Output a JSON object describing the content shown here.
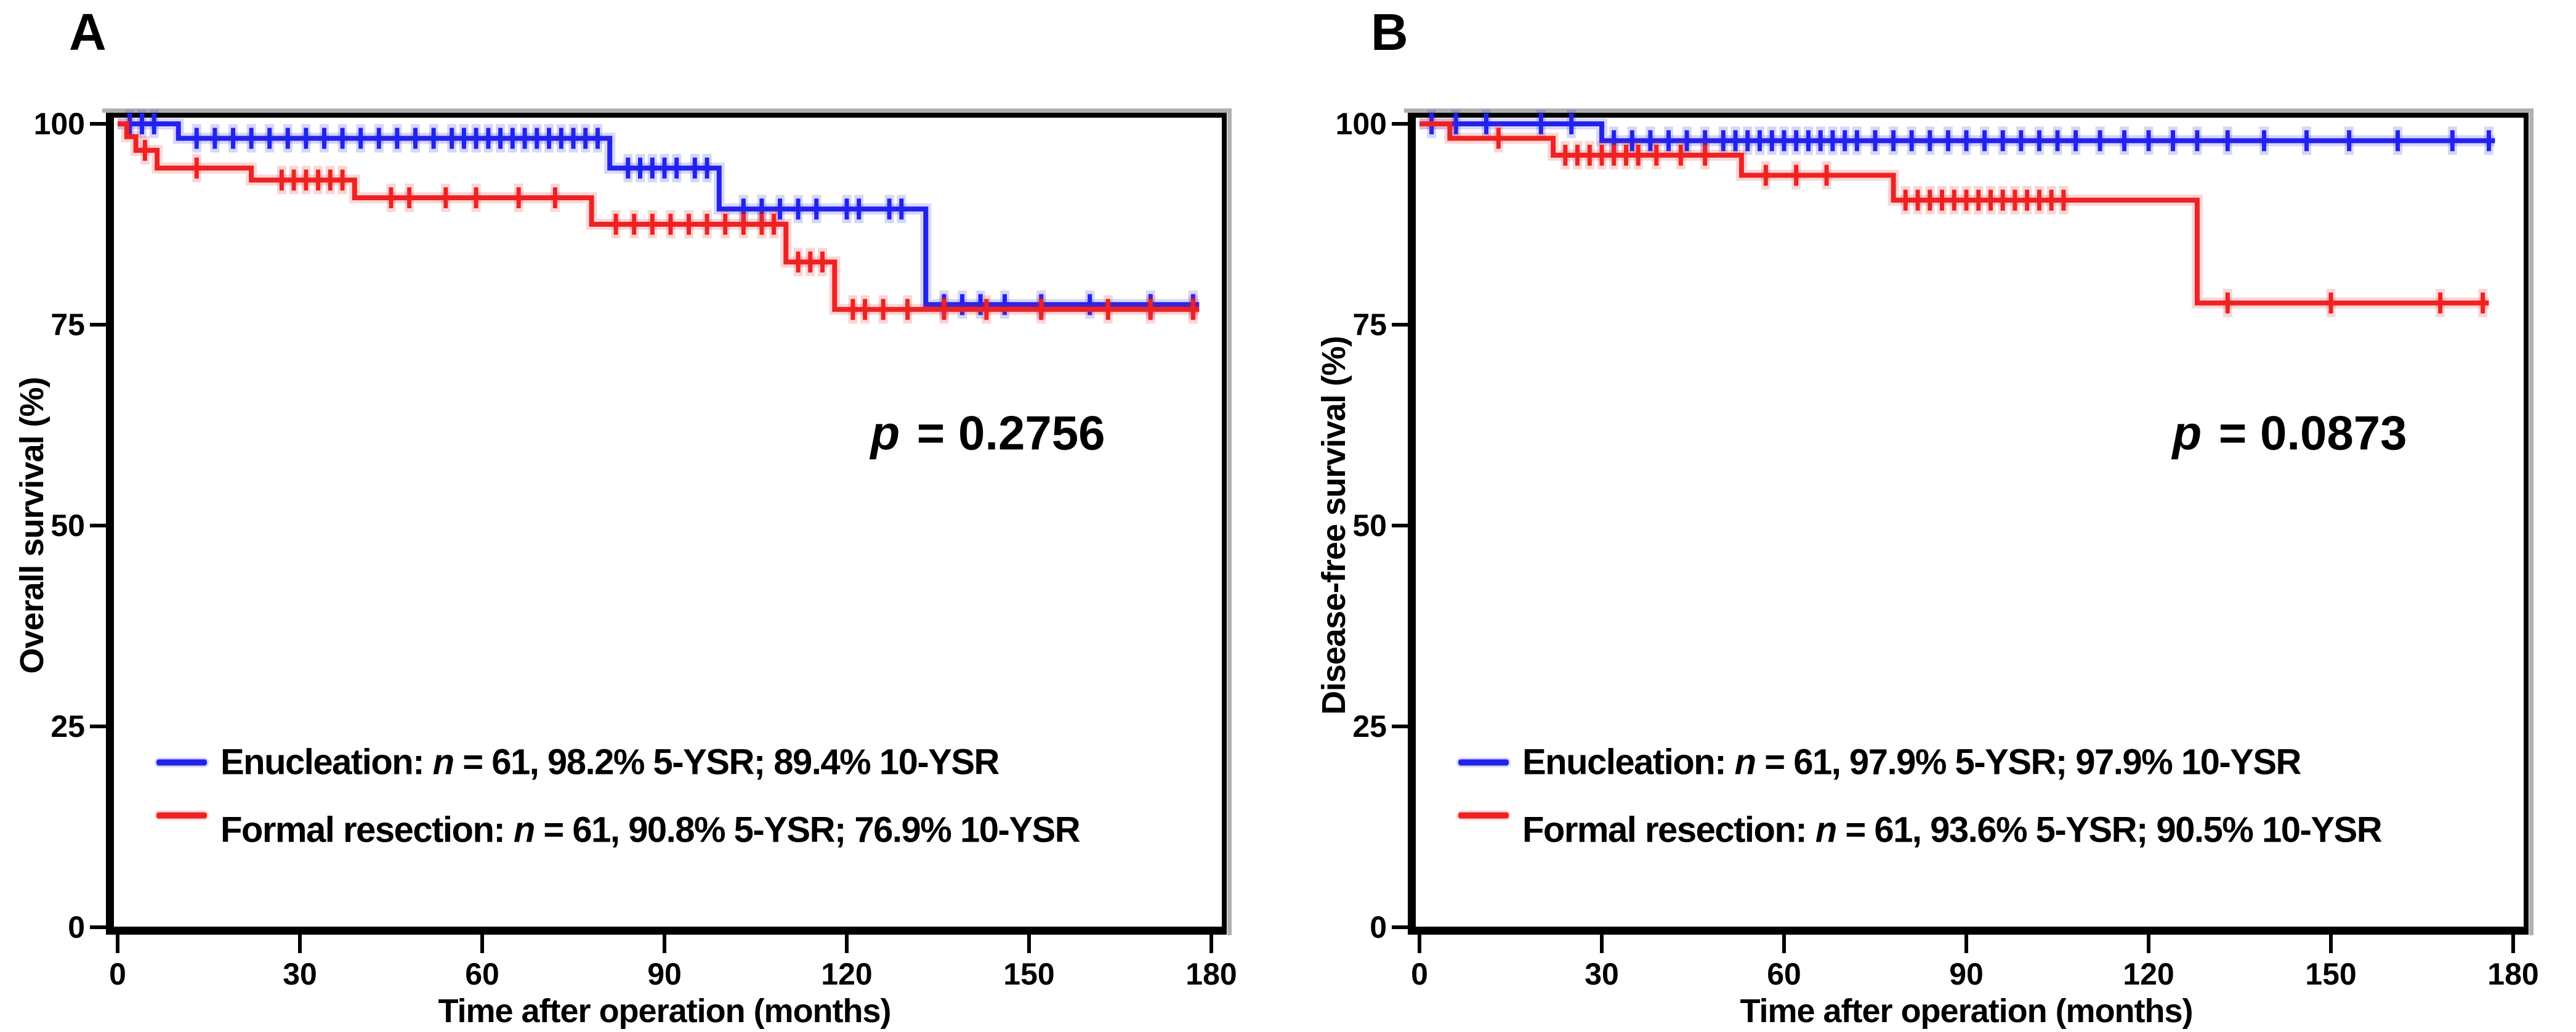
{
  "figure": {
    "description": "Two-panel Kaplan-Meier survival figure comparing enucleation vs formal resection",
    "frame_shadow_color": "#b0b0b0",
    "axis_color": "#000000"
  },
  "chart_data": [
    {
      "type": "line",
      "subtype": "kaplan-meier-step",
      "panel_label": "A",
      "title": "",
      "xlabel": "Time after operation (months)",
      "ylabel": "Overall survival (%)",
      "xlim": [
        0,
        180
      ],
      "ylim": [
        0,
        100
      ],
      "x_ticks": [
        0,
        30,
        60,
        90,
        120,
        150,
        180
      ],
      "y_ticks": [
        0,
        25,
        50,
        75,
        100
      ],
      "grid": "off",
      "legend_position": "lower-left-inside",
      "p_value": {
        "symbol": "p",
        "text": " = 0.2756"
      },
      "series": [
        {
          "name": "Enucleation",
          "color": "#2222ee",
          "legend": {
            "prefix": "Enucleation: ",
            "italic": "n",
            "suffix": " = 61, 98.2% 5-YSR; 89.4% 10-YSR"
          },
          "n": 61,
          "ysr5": 98.2,
          "ysr10": 89.4,
          "start": [
            0,
            100
          ],
          "steps": [
            [
              10,
              98.2
            ],
            [
              81,
              94.5
            ],
            [
              99,
              89.4
            ],
            [
              133,
              77.5
            ]
          ],
          "end_x": 178,
          "censors": [
            [
              2,
              100
            ],
            [
              4,
              100
            ],
            [
              6,
              100
            ],
            [
              13,
              98.2
            ],
            [
              16,
              98.2
            ],
            [
              19,
              98.2
            ],
            [
              22,
              98.2
            ],
            [
              25,
              98.2
            ],
            [
              28,
              98.2
            ],
            [
              31,
              98.2
            ],
            [
              34,
              98.2
            ],
            [
              37,
              98.2
            ],
            [
              40,
              98.2
            ],
            [
              43,
              98.2
            ],
            [
              46,
              98.2
            ],
            [
              49,
              98.2
            ],
            [
              52,
              98.2
            ],
            [
              55,
              98.2
            ],
            [
              57,
              98.2
            ],
            [
              59,
              98.2
            ],
            [
              61,
              98.2
            ],
            [
              63,
              98.2
            ],
            [
              65,
              98.2
            ],
            [
              67,
              98.2
            ],
            [
              69,
              98.2
            ],
            [
              71,
              98.2
            ],
            [
              73,
              98.2
            ],
            [
              75,
              98.2
            ],
            [
              77,
              98.2
            ],
            [
              79,
              98.2
            ],
            [
              84,
              94.5
            ],
            [
              86,
              94.5
            ],
            [
              88,
              94.5
            ],
            [
              90,
              94.5
            ],
            [
              92,
              94.5
            ],
            [
              95,
              94.5
            ],
            [
              97,
              94.5
            ],
            [
              103,
              89.4
            ],
            [
              106,
              89.4
            ],
            [
              109,
              89.4
            ],
            [
              112,
              89.4
            ],
            [
              115,
              89.4
            ],
            [
              120,
              89.4
            ],
            [
              122,
              89.4
            ],
            [
              127,
              89.4
            ],
            [
              129,
              89.4
            ],
            [
              136,
              77.5
            ],
            [
              139,
              77.5
            ],
            [
              142,
              77.5
            ],
            [
              146,
              77.5
            ],
            [
              152,
              77.5
            ],
            [
              160,
              77.5
            ],
            [
              170,
              77.5
            ],
            [
              177,
              77.5
            ]
          ]
        },
        {
          "name": "Formal resection",
          "color": "#ee2222",
          "legend": {
            "prefix": "Formal resection: ",
            "italic": "n",
            "suffix": " = 61, 90.8% 5-YSR; 76.9% 10-YSR"
          },
          "n": 61,
          "ysr5": 90.8,
          "ysr10": 76.9,
          "start": [
            0,
            100
          ],
          "steps": [
            [
              1.5,
              98.4
            ],
            [
              3,
              96.7
            ],
            [
              6.5,
              94.5
            ],
            [
              22,
              93.0
            ],
            [
              39,
              90.8
            ],
            [
              78,
              87.5
            ],
            [
              110,
              82.8
            ],
            [
              118,
              76.9
            ]
          ],
          "end_x": 178,
          "censors": [
            [
              4.5,
              96.7
            ],
            [
              13,
              94.5
            ],
            [
              27,
              93.0
            ],
            [
              29,
              93.0
            ],
            [
              31,
              93.0
            ],
            [
              33,
              93.0
            ],
            [
              35,
              93.0
            ],
            [
              37,
              93.0
            ],
            [
              45,
              90.8
            ],
            [
              48,
              90.8
            ],
            [
              54,
              90.8
            ],
            [
              59,
              90.8
            ],
            [
              66,
              90.8
            ],
            [
              72,
              90.8
            ],
            [
              82,
              87.5
            ],
            [
              85,
              87.5
            ],
            [
              88,
              87.5
            ],
            [
              91,
              87.5
            ],
            [
              94,
              87.5
            ],
            [
              97,
              87.5
            ],
            [
              100,
              87.5
            ],
            [
              103,
              87.5
            ],
            [
              106,
              87.5
            ],
            [
              108,
              87.5
            ],
            [
              112,
              82.8
            ],
            [
              114,
              82.8
            ],
            [
              116,
              82.8
            ],
            [
              121,
              76.9
            ],
            [
              123,
              76.9
            ],
            [
              126,
              76.9
            ],
            [
              130,
              76.9
            ],
            [
              136,
              76.9
            ],
            [
              143,
              76.9
            ],
            [
              152,
              76.9
            ],
            [
              163,
              76.9
            ],
            [
              170,
              76.9
            ],
            [
              177,
              76.9
            ]
          ]
        }
      ]
    },
    {
      "type": "line",
      "subtype": "kaplan-meier-step",
      "panel_label": "B",
      "title": "",
      "xlabel": "Time after operation (months)",
      "ylabel": "Disease-free survival (%)",
      "xlim": [
        0,
        180
      ],
      "ylim": [
        0,
        100
      ],
      "x_ticks": [
        0,
        30,
        60,
        90,
        120,
        150,
        180
      ],
      "y_ticks": [
        0,
        25,
        50,
        75,
        100
      ],
      "grid": "off",
      "legend_position": "lower-left-inside",
      "p_value": {
        "symbol": "p",
        "text": " = 0.0873"
      },
      "series": [
        {
          "name": "Enucleation",
          "color": "#2222ee",
          "legend": {
            "prefix": "Enucleation: ",
            "italic": "n",
            "suffix": " = 61, 97.9% 5-YSR; 97.9% 10-YSR"
          },
          "n": 61,
          "ysr5": 97.9,
          "ysr10": 97.9,
          "start": [
            0,
            100
          ],
          "steps": [
            [
              30,
              97.9
            ]
          ],
          "end_x": 177,
          "censors": [
            [
              2,
              100
            ],
            [
              6,
              100
            ],
            [
              11,
              100
            ],
            [
              20,
              100
            ],
            [
              25,
              100
            ],
            [
              32,
              97.9
            ],
            [
              35,
              97.9
            ],
            [
              38,
              97.9
            ],
            [
              41,
              97.9
            ],
            [
              44,
              97.9
            ],
            [
              47,
              97.9
            ],
            [
              50,
              97.9
            ],
            [
              52,
              97.9
            ],
            [
              54,
              97.9
            ],
            [
              56,
              97.9
            ],
            [
              58,
              97.9
            ],
            [
              60,
              97.9
            ],
            [
              62,
              97.9
            ],
            [
              64,
              97.9
            ],
            [
              66,
              97.9
            ],
            [
              68,
              97.9
            ],
            [
              70,
              97.9
            ],
            [
              72,
              97.9
            ],
            [
              75,
              97.9
            ],
            [
              78,
              97.9
            ],
            [
              81,
              97.9
            ],
            [
              84,
              97.9
            ],
            [
              87,
              97.9
            ],
            [
              90,
              97.9
            ],
            [
              93,
              97.9
            ],
            [
              96,
              97.9
            ],
            [
              99,
              97.9
            ],
            [
              102,
              97.9
            ],
            [
              105,
              97.9
            ],
            [
              108,
              97.9
            ],
            [
              112,
              97.9
            ],
            [
              116,
              97.9
            ],
            [
              120,
              97.9
            ],
            [
              124,
              97.9
            ],
            [
              128,
              97.9
            ],
            [
              133,
              97.9
            ],
            [
              139,
              97.9
            ],
            [
              146,
              97.9
            ],
            [
              153,
              97.9
            ],
            [
              161,
              97.9
            ],
            [
              170,
              97.9
            ],
            [
              176,
              97.9
            ]
          ]
        },
        {
          "name": "Formal resection",
          "color": "#ee2222",
          "legend": {
            "prefix": "Formal resection: ",
            "italic": "n",
            "suffix": " = 61, 93.6% 5-YSR; 90.5% 10-YSR"
          },
          "n": 61,
          "ysr5": 93.6,
          "ysr10": 90.5,
          "start": [
            0,
            100
          ],
          "steps": [
            [
              5,
              98.2
            ],
            [
              22,
              96.1
            ],
            [
              53,
              93.6
            ],
            [
              78,
              90.5
            ],
            [
              128,
              77.7
            ]
          ],
          "end_x": 176,
          "censors": [
            [
              13,
              98.2
            ],
            [
              24,
              96.1
            ],
            [
              26,
              96.1
            ],
            [
              28,
              96.1
            ],
            [
              30,
              96.1
            ],
            [
              32,
              96.1
            ],
            [
              34,
              96.1
            ],
            [
              36,
              96.1
            ],
            [
              39,
              96.1
            ],
            [
              43,
              96.1
            ],
            [
              47,
              96.1
            ],
            [
              57,
              93.6
            ],
            [
              62,
              93.6
            ],
            [
              67,
              93.6
            ],
            [
              80,
              90.5
            ],
            [
              82,
              90.5
            ],
            [
              84,
              90.5
            ],
            [
              86,
              90.5
            ],
            [
              88,
              90.5
            ],
            [
              90,
              90.5
            ],
            [
              92,
              90.5
            ],
            [
              94,
              90.5
            ],
            [
              96,
              90.5
            ],
            [
              98,
              90.5
            ],
            [
              100,
              90.5
            ],
            [
              102,
              90.5
            ],
            [
              104,
              90.5
            ],
            [
              106,
              90.5
            ],
            [
              133,
              77.7
            ],
            [
              150,
              77.7
            ],
            [
              168,
              77.7
            ],
            [
              175,
              77.7
            ]
          ]
        }
      ]
    }
  ]
}
